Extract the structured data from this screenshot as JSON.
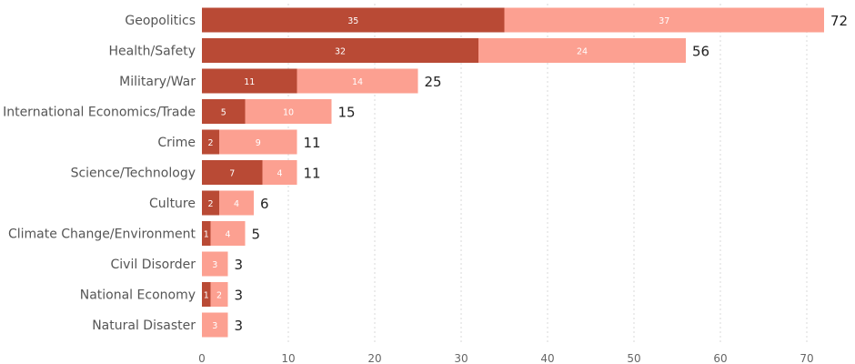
{
  "chart_data": {
    "type": "bar",
    "orientation": "horizontal",
    "stacked": true,
    "categories": [
      "Geopolitics",
      "Health/Safety",
      "Military/War",
      "International Economics/Trade",
      "Crime",
      "Science/Technology",
      "Culture",
      "Climate Change/Environment",
      "Civil Disorder",
      "National Economy",
      "Natural Disaster"
    ],
    "series": [
      {
        "values": [
          35,
          32,
          11,
          5,
          2,
          7,
          2,
          1,
          0,
          1,
          0
        ],
        "color": "#b94a35"
      },
      {
        "values": [
          37,
          24,
          14,
          10,
          9,
          4,
          4,
          4,
          3,
          2,
          3
        ],
        "color": "#fca091"
      }
    ],
    "totals": [
      "72",
      "56",
      "25",
      "15",
      "11",
      "11",
      "6",
      "5",
      "3",
      "3",
      "3"
    ],
    "xticks": [
      "0",
      "10",
      "20",
      "30",
      "40",
      "50",
      "60",
      "70"
    ],
    "xlim": [
      0,
      75
    ],
    "grid": true,
    "title": "",
    "xlabel": "",
    "ylabel": ""
  }
}
